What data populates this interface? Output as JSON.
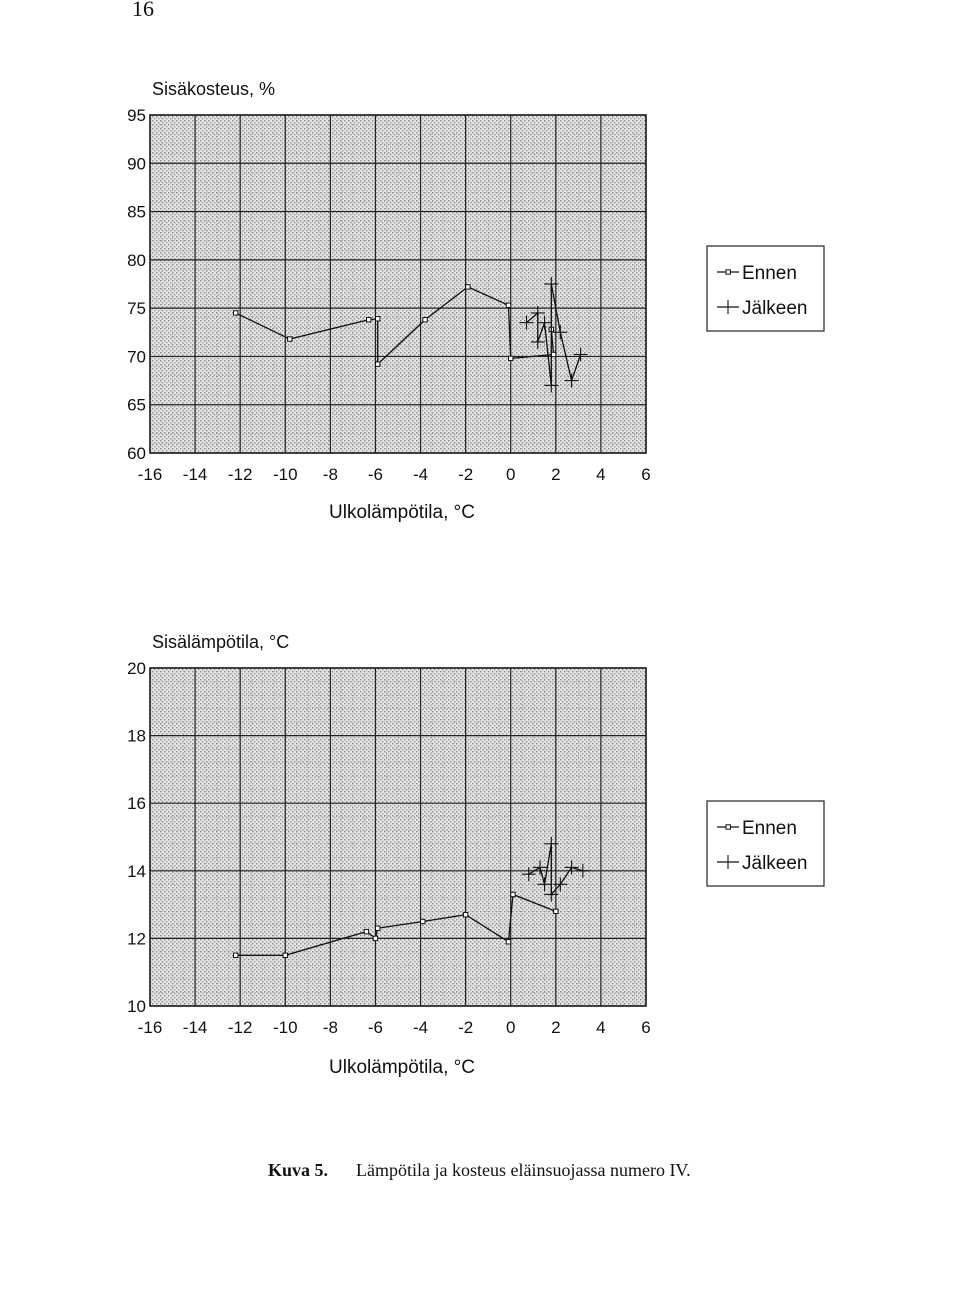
{
  "page_number": "16",
  "caption": {
    "label": "Kuva 5.",
    "text": "Lämpötila ja kosteus eläinsuojassa numero IV."
  },
  "colors": {
    "plot_bg": "#d6d6d6",
    "grid": "#222222",
    "line": "#111111"
  },
  "chart_data": [
    {
      "type": "line",
      "title": "Sisäkosteus, %",
      "xlabel": "Ulkolämpötila, °C",
      "ylabel": "",
      "xlim": [
        -16,
        6
      ],
      "ylim": [
        60,
        95
      ],
      "x_ticks": [
        "-16",
        "-14",
        "-12",
        "-10",
        "-8",
        "-6",
        "-4",
        "-2",
        "0",
        "2",
        "4",
        "6"
      ],
      "y_ticks": [
        "60",
        "65",
        "70",
        "75",
        "80",
        "85",
        "90",
        "95"
      ],
      "x_tick_values": [
        -16,
        -14,
        -12,
        -10,
        -8,
        -6,
        -4,
        -2,
        0,
        2,
        4,
        6
      ],
      "y_tick_values": [
        60,
        65,
        70,
        75,
        80,
        85,
        90,
        95
      ],
      "grid": true,
      "legend_position": "right",
      "series": [
        {
          "name": "Ennen",
          "marker": "square",
          "points": [
            [
              -12.2,
              74.5
            ],
            [
              -9.8,
              71.8
            ],
            [
              -6.3,
              73.8
            ],
            [
              -5.9,
              73.9
            ],
            [
              -5.9,
              69.2
            ],
            [
              -3.8,
              73.8
            ],
            [
              -1.9,
              77.2
            ],
            [
              -0.1,
              75.3
            ],
            [
              0,
              69.8
            ],
            [
              1.9,
              70.2
            ],
            [
              1.8,
              72.8
            ]
          ]
        },
        {
          "name": "Jälkeen",
          "marker": "plus",
          "points": [
            [
              0.7,
              73.5
            ],
            [
              1.2,
              74.5
            ],
            [
              1.2,
              71.5
            ],
            [
              1.5,
              73.5
            ],
            [
              1.8,
              67
            ],
            [
              1.8,
              77.5
            ],
            [
              2.2,
              72.5
            ],
            [
              2.7,
              67.5
            ],
            [
              3.1,
              70.2
            ]
          ]
        }
      ]
    },
    {
      "type": "line",
      "title": "Sisälämpötila, °C",
      "xlabel": "Ulkolämpötila, °C",
      "ylabel": "",
      "xlim": [
        -16,
        6
      ],
      "ylim": [
        10,
        20
      ],
      "x_ticks": [
        "-16",
        "-14",
        "-12",
        "-10",
        "-8",
        "-6",
        "-4",
        "-2",
        "0",
        "2",
        "4",
        "6"
      ],
      "y_ticks": [
        "10",
        "12",
        "14",
        "16",
        "18",
        "20"
      ],
      "x_tick_values": [
        -16,
        -14,
        -12,
        -10,
        -8,
        -6,
        -4,
        -2,
        0,
        2,
        4,
        6
      ],
      "y_tick_values": [
        10,
        12,
        14,
        16,
        18,
        20
      ],
      "grid": true,
      "legend_position": "right",
      "series": [
        {
          "name": "Ennen",
          "marker": "square",
          "points": [
            [
              -12.2,
              11.5
            ],
            [
              -10,
              11.5
            ],
            [
              -6.4,
              12.2
            ],
            [
              -6,
              12
            ],
            [
              -5.9,
              12.3
            ],
            [
              -3.9,
              12.5
            ],
            [
              -2,
              12.7
            ],
            [
              -0.1,
              11.9
            ],
            [
              0.1,
              13.3
            ],
            [
              2,
              12.8
            ]
          ]
        },
        {
          "name": "Jälkeen",
          "marker": "plus",
          "points": [
            [
              0.8,
              13.9
            ],
            [
              1.3,
              14.1
            ],
            [
              1.5,
              13.6
            ],
            [
              1.8,
              14.8
            ],
            [
              1.8,
              13.3
            ],
            [
              2.2,
              13.6
            ],
            [
              2.7,
              14.1
            ],
            [
              3.2,
              14.0
            ]
          ]
        }
      ]
    }
  ]
}
